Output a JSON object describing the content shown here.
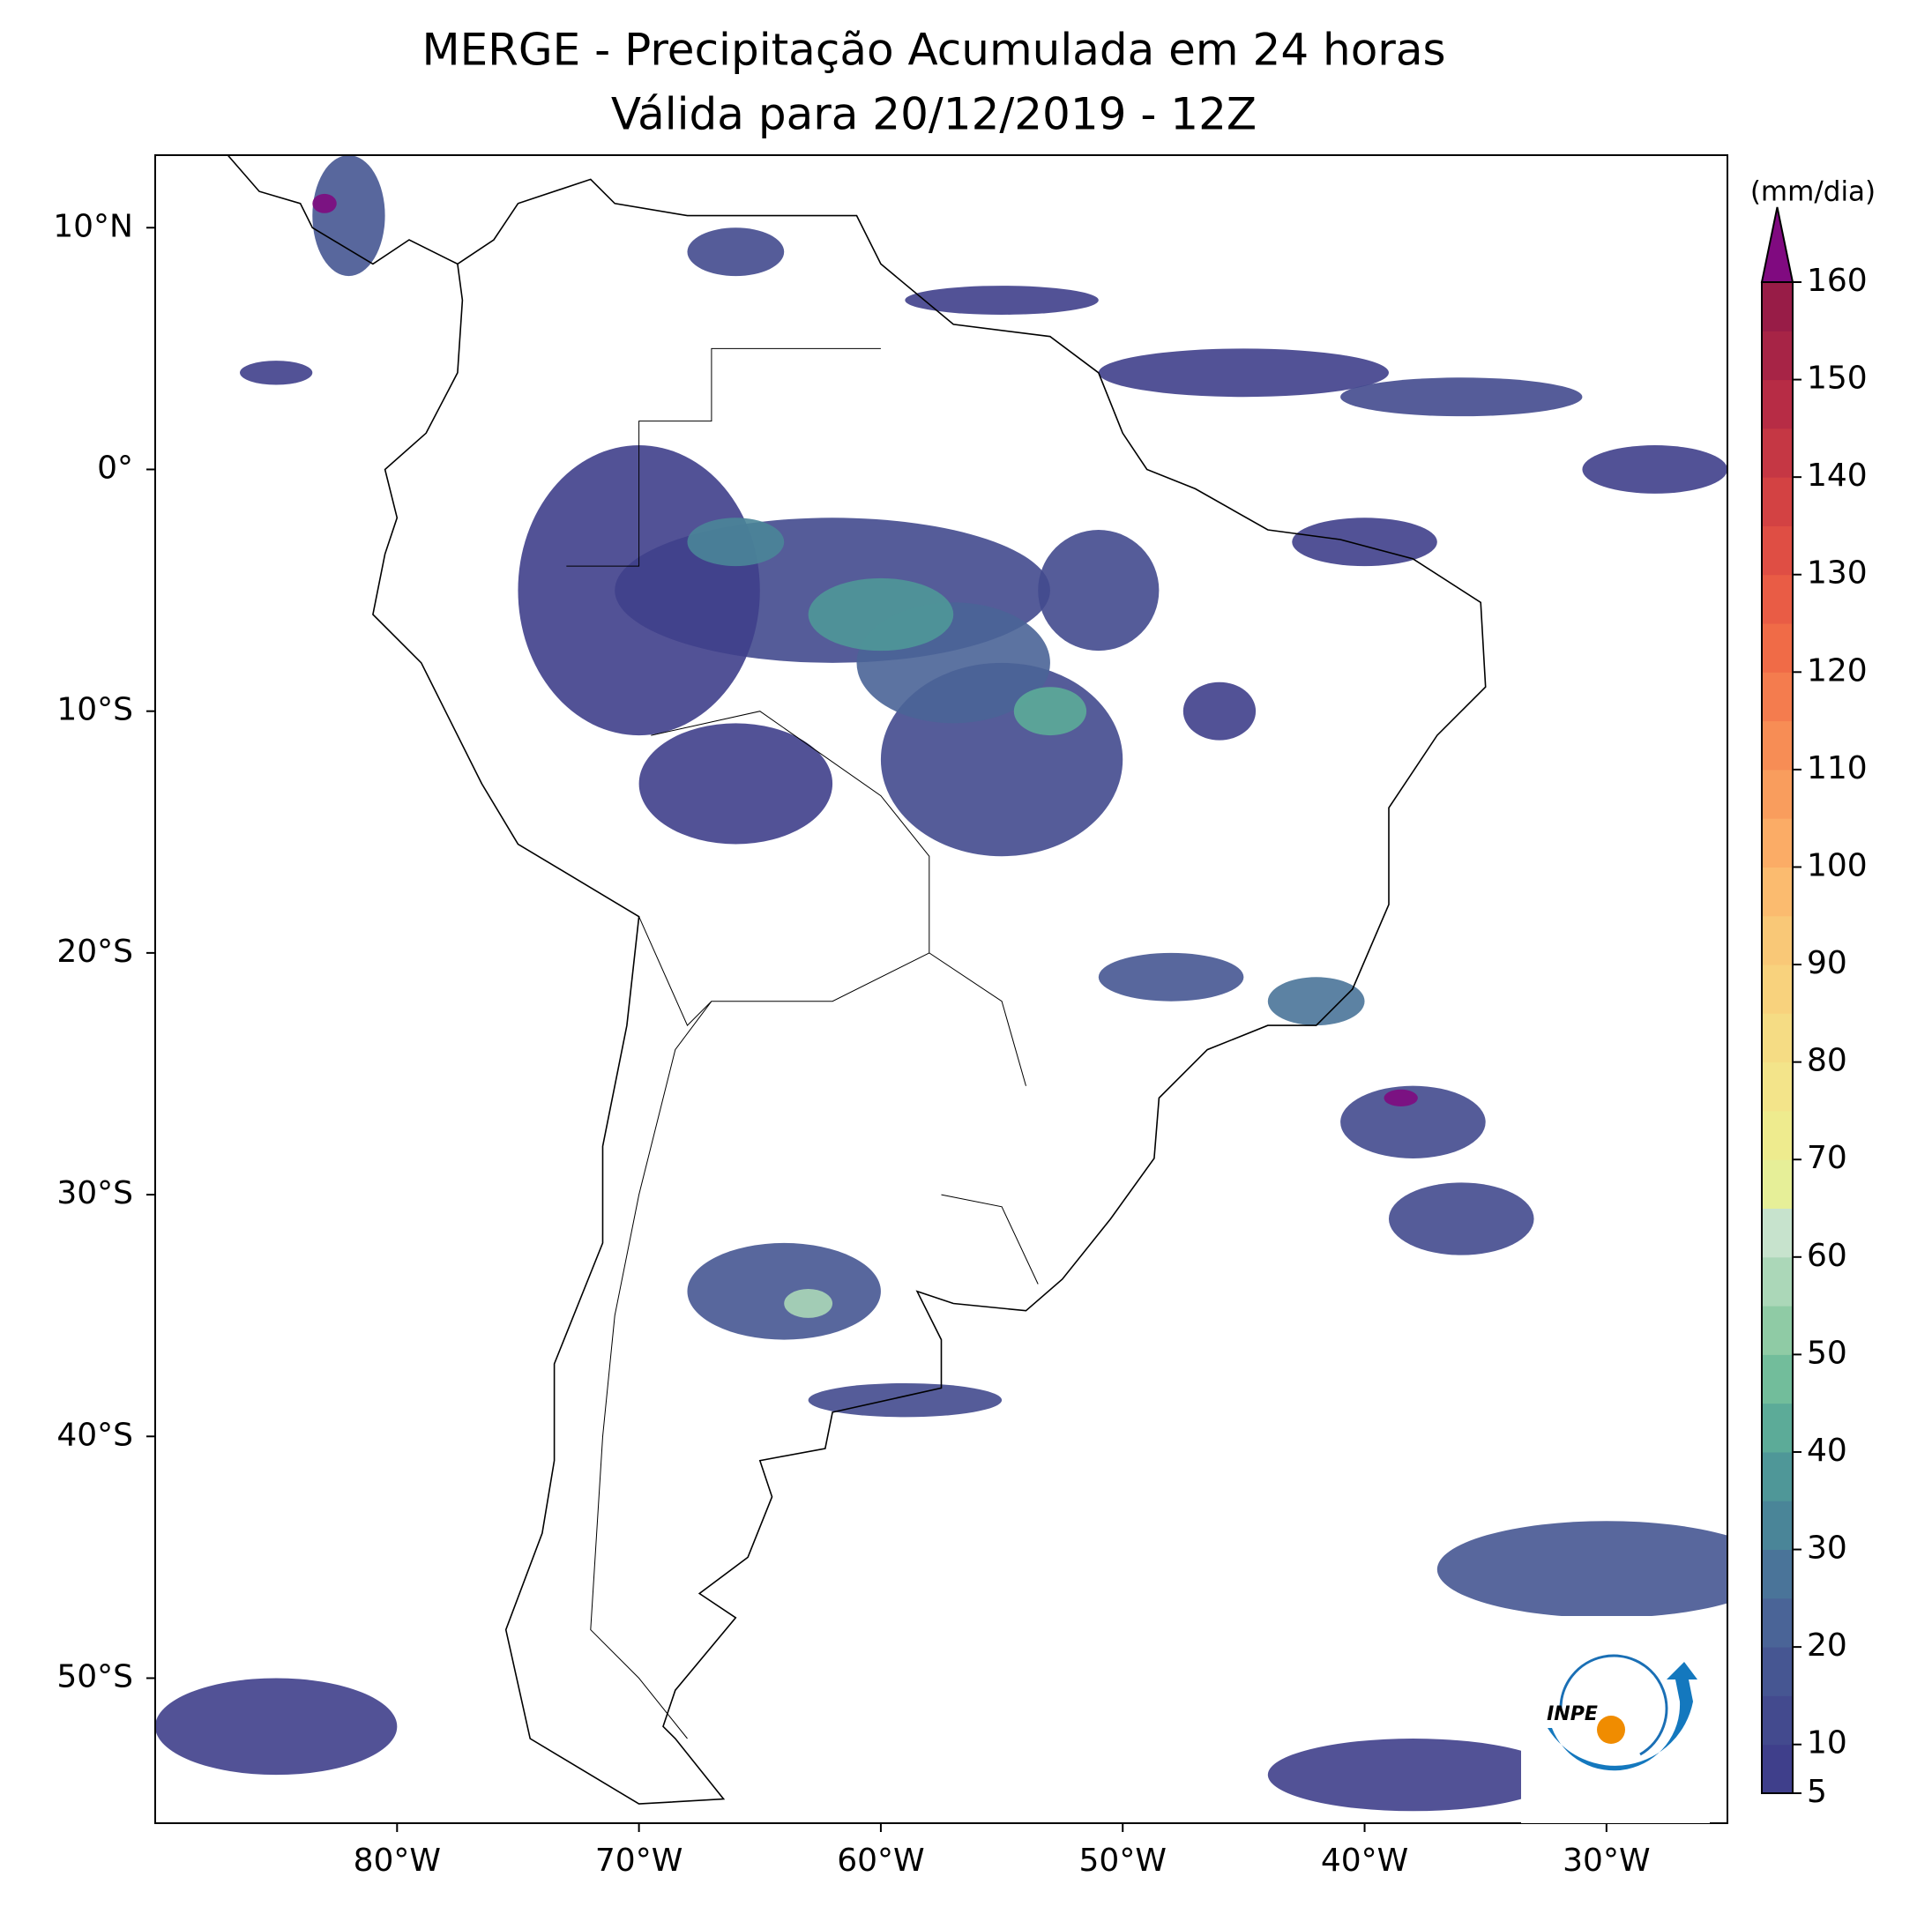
{
  "title": [
    "MERGE - Precipitação Acumulada em 24 horas",
    "Válida para 20/12/2019 - 12Z"
  ],
  "map": {
    "xlim": [
      -90,
      -25
    ],
    "ylim": [
      -56,
      13
    ],
    "xticks": [
      {
        "value": -80,
        "label": "80°W"
      },
      {
        "value": -70,
        "label": "70°W"
      },
      {
        "value": -60,
        "label": "60°W"
      },
      {
        "value": -50,
        "label": "50°W"
      },
      {
        "value": -40,
        "label": "40°W"
      },
      {
        "value": -30,
        "label": "30°W"
      }
    ],
    "yticks": [
      {
        "value": 10,
        "label": "10°N"
      },
      {
        "value": 0,
        "label": "0°"
      },
      {
        "value": -10,
        "label": "10°S"
      },
      {
        "value": -20,
        "label": "20°S"
      },
      {
        "value": -30,
        "label": "30°S"
      },
      {
        "value": -40,
        "label": "40°S"
      },
      {
        "value": -50,
        "label": "50°S"
      }
    ]
  },
  "colorbar": {
    "label": "(mm/dia)",
    "ticks": [
      5,
      10,
      20,
      30,
      40,
      50,
      60,
      70,
      80,
      90,
      100,
      110,
      120,
      130,
      140,
      150,
      160
    ],
    "levels": [
      5,
      10,
      15,
      20,
      25,
      30,
      35,
      40,
      45,
      50,
      55,
      60,
      65,
      70,
      75,
      80,
      85,
      90,
      95,
      100,
      105,
      110,
      115,
      120,
      125,
      130,
      135,
      140,
      145,
      150,
      155,
      160
    ],
    "colors": [
      "#3f3f8b",
      "#434a8e",
      "#465692",
      "#4a6497",
      "#4a7499",
      "#4a8598",
      "#4f9798",
      "#5cab98",
      "#72bd9b",
      "#8fcba5",
      "#abd7b8",
      "#c7e3cd",
      "#e6ef98",
      "#eeeb8e",
      "#f3e48a",
      "#f5dc84",
      "#f8d27d",
      "#f9c877",
      "#fbbb6f",
      "#fbac66",
      "#f99d5d",
      "#f78d55",
      "#f47c4e",
      "#f06b47",
      "#e95c45",
      "#df4e44",
      "#d34243",
      "#c53744",
      "#b72c45",
      "#a72446",
      "#981c47"
    ],
    "extend": "max",
    "over_color": "#800a80"
  },
  "logo": {
    "text": "INPE"
  }
}
